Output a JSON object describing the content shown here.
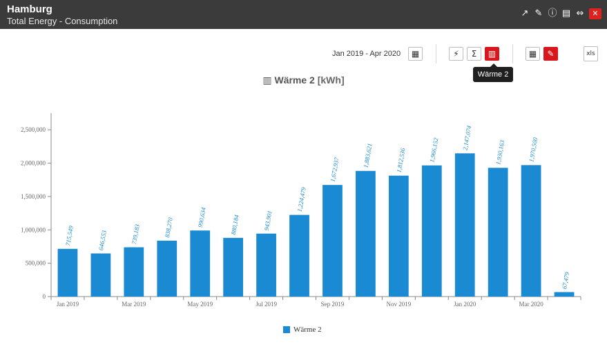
{
  "window": {
    "title": "Hamburg",
    "subtitle": "Total Energy - Consumption"
  },
  "toolbar": {
    "date_range": "Jan 2019 - Apr 2020",
    "tooltip": "Wärme 2",
    "icons": {
      "calendar": "calendar-icon",
      "energy": "lightning-icon",
      "sum": "sigma-icon",
      "heating": "radiator-icon",
      "table": "table-icon",
      "tag": "tag-icon",
      "export": "xls-export-icon"
    },
    "sum_glyph": "Σ",
    "xls_label": "xls",
    "active_color": "#d8161b"
  },
  "header_icons": [
    "share-icon",
    "pin-icon",
    "info-icon",
    "pdf-icon",
    "resize-icon",
    "close-icon"
  ],
  "colors": {
    "bar": "#1a8bd2",
    "label": "#1a8bd2",
    "titlebar": "#3b3b3b"
  },
  "chart_data": {
    "type": "bar",
    "title": "Wärme 2",
    "title_unit": "[kWh]",
    "categories": [
      "Jan 2019",
      "Feb 2019",
      "Mar 2019",
      "Apr 2019",
      "May 2019",
      "Jun 2019",
      "Jul 2019",
      "Aug 2019",
      "Sep 2019",
      "Oct 2019",
      "Nov 2019",
      "Dec 2019",
      "Jan 2020",
      "Feb 2020",
      "Mar 2020",
      "Apr 2020"
    ],
    "x_tick_labels": [
      "Jan 2019",
      "",
      "Mar 2019",
      "",
      "May 2019",
      "",
      "Jul 2019",
      "",
      "Sep 2019",
      "",
      "Nov 2019",
      "",
      "Jan 2020",
      "",
      "Mar 2020",
      ""
    ],
    "series": [
      {
        "name": "Wärme 2",
        "values": [
          715549,
          646553,
          739183,
          838270,
          990634,
          880184,
          943901,
          1224479,
          1672937,
          1883621,
          1812536,
          1966152,
          2147074,
          1930163,
          1970500,
          67479
        ],
        "labels": [
          "715,549",
          "646,553",
          "739,183",
          "838,270",
          "990,634",
          "880,184",
          "943,901",
          "1,224,479",
          "1,672,937",
          "1,883,621",
          "1,812,536",
          "1,966,152",
          "2,147,074",
          "1,930,163",
          "1,970,500",
          "67,479"
        ]
      }
    ],
    "ylim": [
      0,
      2750000
    ],
    "y_ticks": [
      0,
      500000,
      1000000,
      1500000,
      2000000,
      2500000
    ],
    "y_tick_labels": [
      "0",
      "500,000",
      "1,000,000",
      "1,500,000",
      "2,000,000",
      "2,500,000"
    ],
    "legend_position": "bottom",
    "grid": false
  }
}
